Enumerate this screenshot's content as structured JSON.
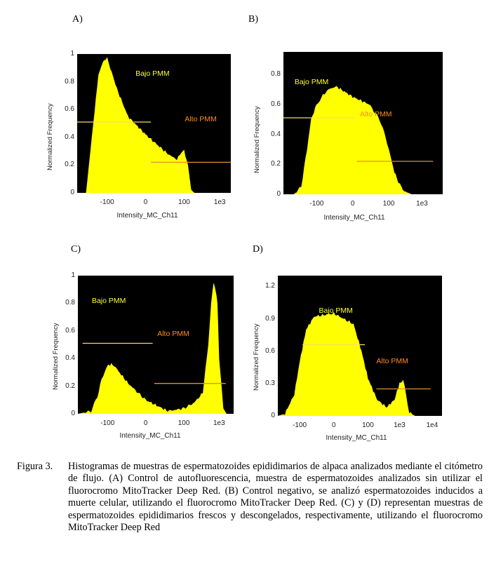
{
  "colors": {
    "histogram": "#ffff00",
    "background": "#000000",
    "gate_bajo": "#f0e060",
    "gate_alto": "#e09030",
    "label_bajo": "#ffff33",
    "label_alto": "#ff8c1a"
  },
  "chart_data": [
    {
      "type": "area",
      "panel": "A)",
      "xlabel": "Intensity_MC_Ch11",
      "ylabel": "Normalized Frequency",
      "xticks": [
        "-100",
        "0",
        "100",
        "1e3"
      ],
      "yticks": [
        "0",
        "0.2",
        "0.4",
        "0.6",
        "0.8",
        "1"
      ],
      "ylim": [
        0,
        1
      ],
      "x": [
        -700,
        -400,
        -250,
        -180,
        -130,
        -100,
        -80,
        -50,
        -20,
        0,
        30,
        60,
        80,
        100,
        130,
        160,
        200
      ],
      "y": [
        0,
        0,
        0.5,
        0.85,
        0.95,
        0.97,
        0.9,
        0.75,
        0.55,
        0.42,
        0.28,
        0.24,
        0.29,
        0.3,
        0.2,
        0.02,
        0
      ],
      "annotations": [
        {
          "text": "Bajo PMM",
          "color": "#ffff33"
        },
        {
          "text": "Alto PMM",
          "color": "#ff8c1a"
        }
      ],
      "gates": [
        {
          "name": "Bajo PMM",
          "y": 0.51
        },
        {
          "name": "Alto PMM",
          "y": 0.22
        }
      ]
    },
    {
      "type": "area",
      "panel": "B)",
      "xlabel": "Intensity_MC_Ch11",
      "ylabel": "Normalized Frequency",
      "xticks": [
        "-100",
        "0",
        "100",
        "1e3"
      ],
      "yticks": [
        "0",
        "0.2",
        "0.4",
        "0.6",
        "0.8"
      ],
      "ylim": [
        0,
        0.95
      ],
      "x": [
        -1000,
        -500,
        -300,
        -200,
        -150,
        -100,
        -70,
        -40,
        -20,
        0,
        20,
        50,
        80,
        100,
        150,
        200,
        300,
        500
      ],
      "y": [
        0,
        0,
        0.05,
        0.3,
        0.5,
        0.6,
        0.65,
        0.7,
        0.72,
        0.65,
        0.6,
        0.5,
        0.38,
        0.3,
        0.15,
        0.08,
        0.02,
        0
      ],
      "annotations": [
        {
          "text": "Bajo PMM",
          "color": "#ffff33"
        },
        {
          "text": "Alto PMM",
          "color": "#ff8c1a"
        }
      ],
      "gates": [
        {
          "name": "Bajo PMM",
          "y": 0.51
        },
        {
          "name": "Alto PMM",
          "y": 0.22
        }
      ]
    },
    {
      "type": "area",
      "panel": "C)",
      "xlabel": "Intensity_MC_Ch11",
      "ylabel": "Normalized Frequency",
      "xticks": [
        "-100",
        "0",
        "100",
        "1e3"
      ],
      "yticks": [
        "0",
        "0.2",
        "0.4",
        "0.6",
        "0.8",
        "1"
      ],
      "ylim": [
        0,
        1
      ],
      "x": [
        -700,
        -300,
        -200,
        -150,
        -100,
        -70,
        -50,
        -20,
        0,
        30,
        60,
        100,
        200,
        350,
        500,
        600,
        700,
        800,
        900,
        1000,
        1300,
        1600
      ],
      "y": [
        0,
        0.02,
        0.12,
        0.25,
        0.35,
        0.36,
        0.32,
        0.22,
        0.1,
        0.02,
        0.03,
        0.04,
        0.08,
        0.15,
        0.5,
        0.8,
        0.95,
        0.9,
        0.8,
        0.4,
        0.05,
        0
      ],
      "annotations": [
        {
          "text": "Bajo PMM",
          "color": "#ffff33"
        },
        {
          "text": "Alto PMM",
          "color": "#ff8c1a"
        }
      ],
      "gates": [
        {
          "name": "Bajo PMM",
          "y": 0.51
        },
        {
          "name": "Alto PMM",
          "y": 0.22
        }
      ]
    },
    {
      "type": "area",
      "panel": "D)",
      "xlabel": "Intensity_MC_Ch11",
      "ylabel": "Normalized Frequency",
      "xticks": [
        "-100",
        "0",
        "100",
        "1e3",
        "1e4"
      ],
      "yticks": [
        "0",
        "0.3",
        "0.6",
        "0.9",
        "1.2"
      ],
      "ylim": [
        0,
        1.3
      ],
      "x": [
        -500,
        -300,
        -150,
        -100,
        -60,
        -30,
        0,
        30,
        60,
        100,
        200,
        400,
        700,
        1000,
        1300,
        1600,
        2000,
        3000
      ],
      "y": [
        0,
        0.02,
        0.2,
        0.5,
        0.8,
        0.92,
        0.95,
        0.85,
        0.6,
        0.35,
        0.15,
        0.08,
        0.15,
        0.3,
        0.33,
        0.2,
        0.03,
        0
      ],
      "annotations": [
        {
          "text": "Bajo PMM",
          "color": "#ffff33"
        },
        {
          "text": "Alto PMM",
          "color": "#ff8c1a"
        }
      ],
      "gates": [
        {
          "name": "Bajo PMM",
          "y": 0.66
        },
        {
          "name": "Alto PMM",
          "y": 0.25
        }
      ]
    }
  ],
  "caption": {
    "label": "Figura 3.",
    "text": "Histogramas de muestras de espermatozoides epididimarios de alpaca analizados mediante el citómetro de flujo. (A) Control de autofluorescencia, muestra de espermatozoides analizados sin utilizar el fluorocromo MitoTracker Deep Red. (B) Control negativo, se analizó espermatozoides inducidos a muerte celular, utilizando el fluorocromo MitoTracker Deep Red. (C) y (D) representan muestras de espermatozoides epididimarios frescos y descongelados, respectivamente, utilizando el fluorocromo MitoTracker Deep Red"
  }
}
